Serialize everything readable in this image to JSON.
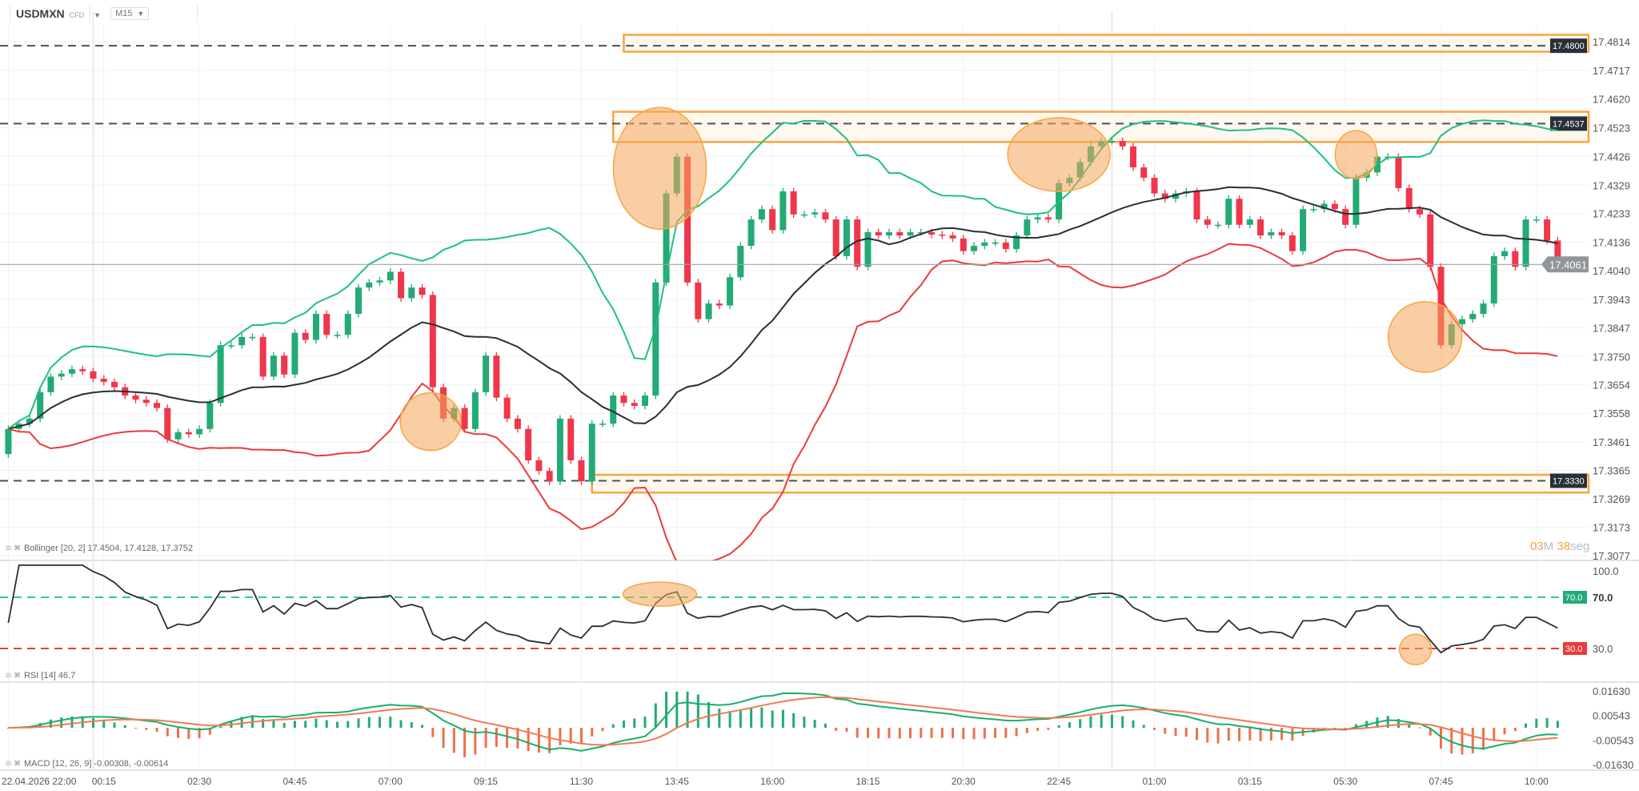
{
  "header": {
    "symbol": "USDMXN",
    "instrument_type": "CFD",
    "timeframe": "M15"
  },
  "timer": {
    "minutes": "03",
    "minutes_unit": "M",
    "seconds": "38",
    "seconds_unit": "seg"
  },
  "colors": {
    "bull": "#22ab74",
    "bear": "#f0364a",
    "bb_upper": "#1fbf83",
    "bb_middle": "#2a2e33",
    "bb_lower": "#ea3b3b",
    "zone": "#f7a541",
    "highlight": "#f5a65b",
    "rsi_line": "#2a2e33",
    "rsi_upper": "#2ecc8f",
    "rsi_lower": "#ea3b3b",
    "macd_line": "#18b06a",
    "macd_signal": "#f07a5a",
    "level_label_bg": "#2a3038",
    "current_price_bg": "#8f9599"
  },
  "chart_data": {
    "type": "candlestick",
    "first_open": 17.342,
    "closes": [
      17.3505,
      17.3523,
      17.354,
      17.3629,
      17.3682,
      17.3692,
      17.3707,
      17.37,
      17.3675,
      17.3664,
      17.3646,
      17.3618,
      17.3604,
      17.3593,
      17.3576,
      17.347,
      17.3494,
      17.3487,
      17.3505,
      17.3593,
      17.3788,
      17.3788,
      17.3816,
      17.3816,
      17.3682,
      17.3753,
      17.3689,
      17.383,
      17.3806,
      17.3894,
      17.3823,
      17.3823,
      17.3894,
      17.3983,
      17.4,
      17.4007,
      17.4036,
      17.3947,
      17.3983,
      17.3958,
      17.3646,
      17.354,
      17.3576,
      17.3505,
      17.3629,
      17.3753,
      17.3611,
      17.354,
      17.3505,
      17.3399,
      17.3363,
      17.3328,
      17.354,
      17.3399,
      17.3328,
      17.3523,
      17.3523,
      17.3618,
      17.3593,
      17.3583,
      17.3618,
      17.4,
      17.4301,
      17.4425,
      17.4,
      17.3876,
      17.3929,
      17.3922,
      17.4018,
      17.4124,
      17.4213,
      17.4248,
      17.4177,
      17.4308,
      17.423,
      17.423,
      17.4237,
      17.4213,
      17.4089,
      17.4213,
      17.4053,
      17.417,
      17.4159,
      17.417,
      17.4159,
      17.417,
      17.417,
      17.4162,
      17.4159,
      17.4149,
      17.4106,
      17.4124,
      17.4135,
      17.4135,
      17.4113,
      17.4159,
      17.4213,
      17.422,
      17.4213,
      17.4336,
      17.4354,
      17.4407,
      17.446,
      17.4478,
      17.4478,
      17.446,
      17.4389,
      17.4354,
      17.4301,
      17.4283,
      17.4301,
      17.4308,
      17.4213,
      17.4195,
      17.4195,
      17.4283,
      17.4195,
      17.4213,
      17.4159,
      17.417,
      17.4159,
      17.4106,
      17.4248,
      17.4248,
      17.4266,
      17.4248,
      17.4195,
      17.4354,
      17.4372,
      17.4425,
      17.4425,
      17.4319,
      17.4248,
      17.423,
      17.4053,
      17.3788,
      17.3859,
      17.3876,
      17.3894,
      17.3929,
      17.4089,
      17.4106,
      17.4053,
      17.4213,
      17.4213,
      17.4142,
      17.4061
    ],
    "current_price": "17.4061",
    "y_ticks": [
      "17.4814",
      "17.4717",
      "17.4620",
      "17.4523",
      "17.4426",
      "17.4329",
      "17.4233",
      "17.4136",
      "17.4040",
      "17.3943",
      "17.3847",
      "17.3750",
      "17.3654",
      "17.3558",
      "17.3461",
      "17.3365",
      "17.3269",
      "17.3173",
      "17.3077"
    ],
    "x_ticks": [
      "22.04.2026 22:00",
      "00:15",
      "02:30",
      "04:45",
      "07:00",
      "09:15",
      "11:30",
      "13:45",
      "16:00",
      "18:15",
      "20:30",
      "22:45",
      "01:00",
      "03:15",
      "05:30",
      "07:45",
      "10:00"
    ],
    "levels": [
      {
        "price": 17.48,
        "label": "17.4800",
        "zone": [
          17.478,
          17.4837
        ],
        "zone_start_index": 58
      },
      {
        "price": 17.4537,
        "label": "17.4537",
        "zone": [
          17.4475,
          17.4577
        ],
        "zone_start_index": 57
      },
      {
        "price": 17.333,
        "label": "17.3330",
        "zone": [
          17.329,
          17.335
        ],
        "zone_start_index": 55
      }
    ],
    "price_highlights": [
      {
        "index": 39.8,
        "price": 17.353
      },
      {
        "index": 61.4,
        "price": 17.4386
      },
      {
        "index": 99,
        "price": 17.4432
      },
      {
        "index": 127,
        "price": 17.4432
      },
      {
        "index": 133.5,
        "price": 17.3816
      }
    ],
    "rsi_highlights": [
      {
        "index": 61.4,
        "value": 72.4
      },
      {
        "index": 132.6,
        "value": 29.2
      }
    ],
    "indicators": {
      "bollinger": {
        "legend": "Bollinger [20, 2] 17.4504, 17.4128, 17.3752"
      },
      "rsi": {
        "legend": "RSI [14] 46.7",
        "ticks": [
          "100.0",
          "70.0",
          "30.0"
        ],
        "upper_label": "70.0",
        "lower_label": "30.0"
      },
      "macd": {
        "legend": "MACD [12, 26, 9] -0.00308, -0.00614",
        "ticks": [
          "0.01630",
          "0.00543",
          "-0.00543",
          "-0.01630"
        ]
      }
    }
  }
}
